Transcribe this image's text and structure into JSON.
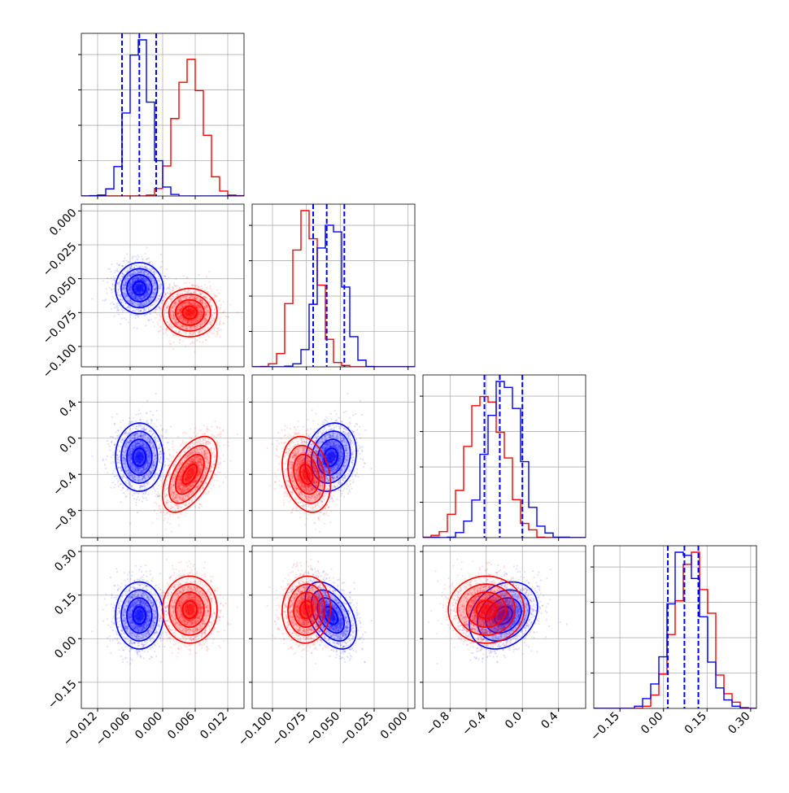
{
  "colors": {
    "blue": "#0000ff",
    "red": "#ff0000",
    "grid": "#b0b0b0",
    "frame": "#000000"
  },
  "chart_data": {
    "type": "corner",
    "title": "",
    "grid": true,
    "legend": "none",
    "n_params": 4,
    "params": [
      {
        "range": [
          -0.015,
          0.015
        ],
        "ticks": [
          -0.012,
          -0.006,
          0.0,
          0.006,
          0.012
        ],
        "tick_labels": [
          "−0.012",
          "−0.006",
          "0.000",
          "0.006",
          "0.012"
        ]
      },
      {
        "range": [
          -0.115,
          0.005
        ],
        "ticks": [
          -0.1,
          -0.075,
          -0.05,
          -0.025,
          0.0
        ],
        "tick_labels": [
          "−0.100",
          "−0.075",
          "−0.050",
          "−0.025",
          "0.000"
        ]
      },
      {
        "range": [
          -1.1,
          0.7
        ],
        "ticks": [
          -0.8,
          -0.4,
          0.0,
          0.4
        ],
        "tick_labels": [
          "−0.8",
          "−0.4",
          "0.0",
          "0.4"
        ]
      },
      {
        "range": [
          -0.24,
          0.32
        ],
        "ticks": [
          -0.15,
          0.0,
          0.15,
          0.3
        ],
        "tick_labels": [
          "−0.15",
          "0.00",
          "0.15",
          "0.30"
        ]
      }
    ],
    "series": [
      {
        "color": "blue",
        "mean": [
          -0.0043,
          -0.057,
          -0.21,
          0.08
        ],
        "sd": [
          0.0021,
          0.009,
          0.18,
          0.055
        ],
        "corr": [
          [
            1,
            0,
            0,
            0
          ],
          [
            0,
            1,
            0.15,
            -0.45
          ],
          [
            0,
            0.15,
            1,
            0.25
          ],
          [
            0,
            -0.45,
            0.25,
            1
          ]
        ],
        "quantiles": [
          [
            -0.0075,
            -0.0043,
            -0.0012
          ],
          [
            -0.07,
            -0.06,
            -0.047
          ],
          [
            -0.42,
            -0.25,
            0.0
          ],
          [
            0.015,
            0.072,
            0.12
          ]
        ]
      },
      {
        "color": "red",
        "mean": [
          0.005,
          -0.075,
          -0.4,
          0.1
        ],
        "sd": [
          0.0024,
          0.0085,
          0.2,
          0.055
        ],
        "corr": [
          [
            1,
            0,
            0.55,
            0
          ],
          [
            0,
            1,
            -0.25,
            0.05
          ],
          [
            0.55,
            -0.25,
            1,
            0
          ],
          [
            0,
            0.05,
            0,
            1
          ]
        ]
      }
    ],
    "scatter_points_per_series": 1800,
    "histogram_bins": 20
  }
}
